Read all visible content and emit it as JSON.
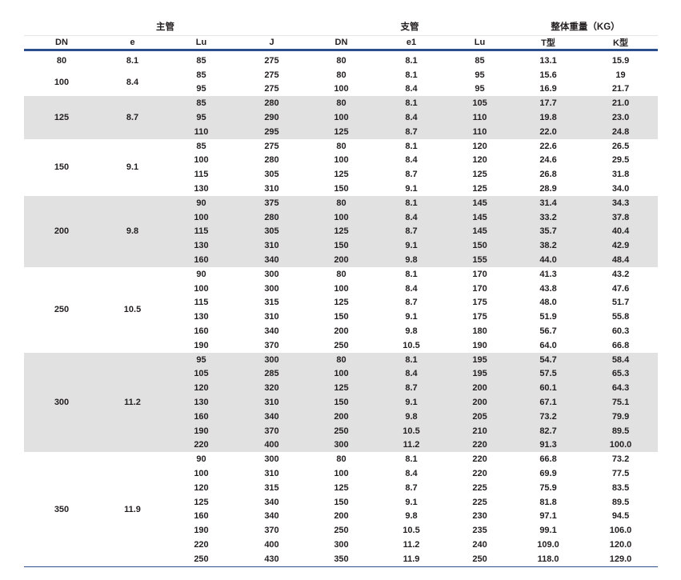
{
  "groups": [
    {
      "label": "主管",
      "span": 4
    },
    {
      "label": "支管",
      "span": 3
    },
    {
      "label": "整体重量（KG）",
      "span": 2
    }
  ],
  "columns": [
    "DN",
    "e",
    "Lu",
    "J",
    "DN",
    "e1",
    "Lu",
    "T型",
    "K型"
  ],
  "shade_color": "#e1e1e1",
  "rule_color": "#2b4f8e",
  "blocks": [
    {
      "dn": "80",
      "e": "8.1",
      "shaded": false,
      "rows": [
        [
          "85",
          "275",
          "80",
          "8.1",
          "85",
          "13.1",
          "15.9"
        ]
      ]
    },
    {
      "dn": "100",
      "e": "8.4",
      "shaded": false,
      "rows": [
        [
          "85",
          "275",
          "80",
          "8.1",
          "95",
          "15.6",
          "19"
        ],
        [
          "95",
          "275",
          "100",
          "8.4",
          "95",
          "16.9",
          "21.7"
        ]
      ]
    },
    {
      "dn": "125",
      "e": "8.7",
      "shaded": true,
      "rows": [
        [
          "85",
          "280",
          "80",
          "8.1",
          "105",
          "17.7",
          "21.0"
        ],
        [
          "95",
          "290",
          "100",
          "8.4",
          "110",
          "19.8",
          "23.0"
        ],
        [
          "110",
          "295",
          "125",
          "8.7",
          "110",
          "22.0",
          "24.8"
        ]
      ]
    },
    {
      "dn": "150",
      "e": "9.1",
      "shaded": false,
      "rows": [
        [
          "85",
          "275",
          "80",
          "8.1",
          "120",
          "22.6",
          "26.5"
        ],
        [
          "100",
          "280",
          "100",
          "8.4",
          "120",
          "24.6",
          "29.5"
        ],
        [
          "115",
          "305",
          "125",
          "8.7",
          "125",
          "26.8",
          "31.8"
        ],
        [
          "130",
          "310",
          "150",
          "9.1",
          "125",
          "28.9",
          "34.0"
        ]
      ]
    },
    {
      "dn": "200",
      "e": "9.8",
      "shaded": true,
      "rows": [
        [
          "90",
          "375",
          "80",
          "8.1",
          "145",
          "31.4",
          "34.3"
        ],
        [
          "100",
          "280",
          "100",
          "8.4",
          "145",
          "33.2",
          "37.8"
        ],
        [
          "115",
          "305",
          "125",
          "8.7",
          "145",
          "35.7",
          "40.4"
        ],
        [
          "130",
          "310",
          "150",
          "9.1",
          "150",
          "38.2",
          "42.9"
        ],
        [
          "160",
          "340",
          "200",
          "9.8",
          "155",
          "44.0",
          "48.4"
        ]
      ]
    },
    {
      "dn": "250",
      "e": "10.5",
      "shaded": false,
      "rows": [
        [
          "90",
          "300",
          "80",
          "8.1",
          "170",
          "41.3",
          "43.2"
        ],
        [
          "100",
          "300",
          "100",
          "8.4",
          "170",
          "43.8",
          "47.6"
        ],
        [
          "115",
          "315",
          "125",
          "8.7",
          "175",
          "48.0",
          "51.7"
        ],
        [
          "130",
          "310",
          "150",
          "9.1",
          "175",
          "51.9",
          "55.8"
        ],
        [
          "160",
          "340",
          "200",
          "9.8",
          "180",
          "56.7",
          "60.3"
        ],
        [
          "190",
          "370",
          "250",
          "10.5",
          "190",
          "64.0",
          "66.8"
        ]
      ]
    },
    {
      "dn": "300",
      "e": "11.2",
      "shaded": true,
      "rows": [
        [
          "95",
          "300",
          "80",
          "8.1",
          "195",
          "54.7",
          "58.4"
        ],
        [
          "105",
          "285",
          "100",
          "8.4",
          "195",
          "57.5",
          "65.3"
        ],
        [
          "120",
          "320",
          "125",
          "8.7",
          "200",
          "60.1",
          "64.3"
        ],
        [
          "130",
          "310",
          "150",
          "9.1",
          "200",
          "67.1",
          "75.1"
        ],
        [
          "160",
          "340",
          "200",
          "9.8",
          "205",
          "73.2",
          "79.9"
        ],
        [
          "190",
          "370",
          "250",
          "10.5",
          "210",
          "82.7",
          "89.5"
        ],
        [
          "220",
          "400",
          "300",
          "11.2",
          "220",
          "91.3",
          "100.0"
        ]
      ]
    },
    {
      "dn": "350",
      "e": "11.9",
      "shaded": false,
      "rows": [
        [
          "90",
          "300",
          "80",
          "8.1",
          "220",
          "66.8",
          "73.2"
        ],
        [
          "100",
          "310",
          "100",
          "8.4",
          "220",
          "69.9",
          "77.5"
        ],
        [
          "120",
          "315",
          "125",
          "8.7",
          "225",
          "75.9",
          "83.5"
        ],
        [
          "125",
          "340",
          "150",
          "9.1",
          "225",
          "81.8",
          "89.5"
        ],
        [
          "160",
          "340",
          "200",
          "9.8",
          "230",
          "97.1",
          "94.5"
        ],
        [
          "190",
          "370",
          "250",
          "10.5",
          "235",
          "99.1",
          "106.0"
        ],
        [
          "220",
          "400",
          "300",
          "11.2",
          "240",
          "109.0",
          "120.0"
        ],
        [
          "250",
          "430",
          "350",
          "11.9",
          "250",
          "118.0",
          "129.0"
        ]
      ]
    }
  ]
}
